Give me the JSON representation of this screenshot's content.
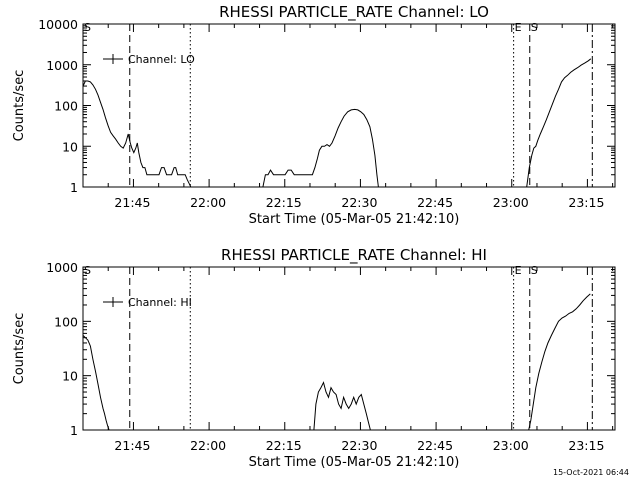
{
  "footer_timestamp": "15-Oct-2021 06:44",
  "chart_data": [
    {
      "type": "line",
      "title": "RHESSI PARTICLE_RATE Channel: LO",
      "xlabel": "Start Time (05-Mar-05 21:42:10)",
      "ylabel": "Counts/sec",
      "yscale": "log",
      "ylim": [
        1,
        10000
      ],
      "xlim_minutes": [
        -7.17,
        98.3
      ],
      "x_ticks": [
        "21:45",
        "22:00",
        "22:15",
        "22:30",
        "22:45",
        "23:00",
        "23:15"
      ],
      "y_ticks": [
        "1",
        "10",
        "100",
        "1000",
        "10000"
      ],
      "legend": {
        "label": "Channel: LO",
        "position": "top-left"
      },
      "markers": [
        {
          "label": "S",
          "x": -7.17,
          "style": "solid"
        },
        {
          "label": "",
          "x": 2.1,
          "style": "dashed"
        },
        {
          "label": "",
          "x": 14.1,
          "style": "dotted"
        },
        {
          "label": "E",
          "x": 78.2,
          "style": "dotted"
        },
        {
          "label": "S",
          "x": 81.4,
          "style": "dashed"
        },
        {
          "label": "",
          "x": 93.8,
          "style": "dashdot"
        }
      ],
      "series": [
        {
          "segments": [
            {
              "x": [
                -7.17,
                -6.7,
                -6.2,
                -5.7,
                -5.2,
                -4.7,
                -4.2,
                -3.7,
                -3.2,
                -2.7,
                -2.2,
                -1.7,
                -1.2,
                -0.7,
                -0.2,
                0.3,
                0.8,
                1.3,
                1.8,
                2.2,
                2.5,
                2.9,
                3.3,
                3.6,
                3.9,
                4.3,
                4.7,
                5.1,
                5.5,
                5.9,
                6.4,
                6.9,
                7.4,
                7.9,
                8.4,
                8.9,
                9.4,
                9.9,
                10.4,
                10.9,
                11.2,
                11.6,
                12.0,
                12.3,
                12.7,
                13.1,
                13.5,
                13.9,
                14.2
              ],
              "y": [
                300,
                400,
                400,
                380,
                320,
                250,
                180,
                120,
                80,
                50,
                32,
                22,
                18,
                15,
                12,
                10,
                9,
                12,
                20,
                12,
                9,
                7,
                9,
                12,
                7,
                4,
                3,
                3,
                2,
                2,
                2,
                2,
                2,
                2,
                3,
                3,
                2,
                2,
                2,
                3,
                3,
                2,
                2,
                2,
                2,
                2,
                1.5,
                1.2,
                1
              ]
            },
            {
              "x": [
                28.5,
                29.0,
                29.5,
                30.0,
                30.6,
                31.2,
                31.7,
                32.3,
                32.9,
                33.5,
                34.1,
                34.7,
                35.3,
                35.9,
                36.5,
                37.1,
                37.7,
                38.3,
                38.8,
                39.3,
                39.7,
                40.2,
                40.7,
                41.2,
                41.7,
                42.2,
                42.8,
                43.4,
                44.0,
                44.6,
                45.3,
                46.0,
                46.7,
                47.3,
                47.9,
                48.5,
                49.1,
                49.7,
                50.2,
                50.7,
                51.1,
                51.4
              ],
              "y": [
                1,
                2,
                2,
                2.6,
                2,
                2,
                2,
                2,
                2,
                2.6,
                2.6,
                2,
                2,
                2,
                2,
                2,
                2,
                2,
                3,
                5,
                8,
                10,
                10,
                11,
                10,
                12,
                18,
                28,
                40,
                55,
                70,
                78,
                80,
                78,
                70,
                60,
                45,
                30,
                15,
                6,
                2,
                1
              ]
            },
            {
              "x": [
                80.8,
                81.3,
                81.8,
                82.2,
                82.6,
                83.0,
                83.5,
                84.1,
                84.7,
                85.3,
                85.9,
                86.5,
                87.1,
                87.7,
                88.3,
                88.9,
                89.5,
                90.2,
                90.9,
                91.6,
                92.3,
                93.0,
                93.5
              ],
              "y": [
                1,
                3,
                6,
                9,
                10,
                14,
                20,
                30,
                45,
                70,
                110,
                170,
                250,
                380,
                480,
                550,
                650,
                750,
                850,
                980,
                1100,
                1250,
                1400
              ]
            }
          ]
        }
      ]
    },
    {
      "type": "line",
      "title": "RHESSI PARTICLE_RATE Channel: HI",
      "xlabel": "Start Time (05-Mar-05 21:42:10)",
      "ylabel": "Counts/sec",
      "yscale": "log",
      "ylim": [
        1,
        1000
      ],
      "xlim_minutes": [
        -7.17,
        98.3
      ],
      "x_ticks": [
        "21:45",
        "22:00",
        "22:15",
        "22:30",
        "22:45",
        "23:00",
        "23:15"
      ],
      "y_ticks": [
        "1",
        "10",
        "100",
        "1000"
      ],
      "legend": {
        "label": "Channel: HI",
        "position": "top-left"
      },
      "markers": [
        {
          "label": "S",
          "x": -7.17,
          "style": "solid"
        },
        {
          "label": "",
          "x": 2.1,
          "style": "dashed"
        },
        {
          "label": "",
          "x": 14.1,
          "style": "dotted"
        },
        {
          "label": "E",
          "x": 78.2,
          "style": "dotted"
        },
        {
          "label": "S",
          "x": 81.4,
          "style": "dashed"
        },
        {
          "label": "",
          "x": 93.8,
          "style": "dashdot"
        }
      ],
      "series": [
        {
          "segments": [
            {
              "x": [
                -7.17,
                -6.7,
                -6.2,
                -5.7,
                -5.2,
                -4.7,
                -4.2,
                -3.7,
                -3.2,
                -2.9,
                -2.6,
                -2.3,
                -2.0
              ],
              "y": [
                55,
                50,
                45,
                35,
                20,
                12,
                7,
                4,
                2.5,
                2,
                1.5,
                1.2,
                1
              ]
            },
            {
              "x": [
                38.6,
                39.0,
                39.5,
                40.0,
                40.5,
                41.0,
                41.5,
                42.0,
                42.5,
                43.0,
                43.5,
                44.0,
                44.5,
                45.0,
                45.5,
                46.0,
                46.5,
                47.0,
                47.5,
                48.0,
                48.5,
                49.0,
                49.5,
                49.8
              ],
              "y": [
                1,
                3,
                5,
                6,
                7.5,
                5,
                4,
                6,
                5,
                4.5,
                3,
                2.5,
                4,
                3,
                2.5,
                3,
                4,
                3,
                4,
                4.5,
                3,
                2,
                1.3,
                1
              ]
            },
            {
              "x": [
                81.2,
                81.6,
                82.1,
                82.6,
                83.2,
                83.8,
                84.4,
                85.0,
                85.7,
                86.4,
                87.1,
                87.8,
                88.5,
                89.2,
                89.9,
                90.6,
                91.3,
                92.0,
                92.7,
                93.4
              ],
              "y": [
                1,
                1.5,
                3,
                6,
                11,
                18,
                28,
                40,
                55,
                75,
                100,
                115,
                125,
                140,
                150,
                170,
                200,
                240,
                280,
                320
              ]
            }
          ]
        }
      ]
    }
  ]
}
